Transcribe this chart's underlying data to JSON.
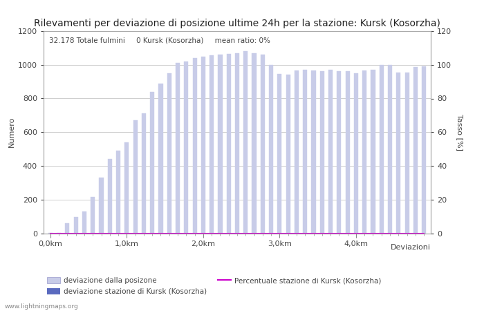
{
  "title": "Rilevamenti per deviazione di posizione ultime 24h per la stazione: Kursk (Kosorzha)",
  "subtitle": "32.178 Totale fulmini     0 Kursk (Kosorzha)     mean ratio: 0%",
  "ylabel_left": "Numero",
  "ylabel_right": "Tasso [%]",
  "xlabel": "Deviazioni",
  "watermark": "www.lightningmaps.org",
  "ylim_left": [
    0,
    1200
  ],
  "ylim_right": [
    0,
    120
  ],
  "xtick_labels": [
    "0,0km",
    "1,0km",
    "2,0km",
    "3,0km",
    "4,0km"
  ],
  "xtick_positions": [
    0,
    9,
    18,
    27,
    36
  ],
  "legend_items": [
    {
      "label": "deviazione dalla posizone",
      "color": "#c8cce8",
      "type": "bar"
    },
    {
      "label": "deviazione stazione di Kursk (Kosorzha)",
      "color": "#5a6abf",
      "type": "bar"
    },
    {
      "label": "Percentuale stazione di Kursk (Kosorzha)",
      "color": "#cc00cc",
      "type": "line"
    }
  ],
  "bar_values": [
    2,
    2,
    60,
    95,
    130,
    215,
    330,
    440,
    490,
    540,
    670,
    710,
    840,
    890,
    950,
    1010,
    1020,
    1040,
    1050,
    1055,
    1060,
    1065,
    1070,
    1080,
    1070,
    1060,
    1000,
    945,
    940,
    965,
    970,
    965,
    960,
    970,
    960,
    960,
    950,
    965,
    970,
    1000,
    1000,
    955,
    955,
    985,
    990
  ],
  "station_values": [
    0,
    0,
    0,
    0,
    0,
    0,
    0,
    0,
    0,
    0,
    0,
    0,
    0,
    0,
    0,
    0,
    0,
    0,
    0,
    0,
    0,
    0,
    0,
    0,
    0,
    0,
    0,
    0,
    0,
    0,
    0,
    0,
    0,
    0,
    0,
    0,
    0,
    0,
    0,
    0,
    0,
    0,
    0,
    0,
    0
  ],
  "ratio_values": [
    0,
    0,
    0,
    0,
    0,
    0,
    0,
    0,
    0,
    0,
    0,
    0,
    0,
    0,
    0,
    0,
    0,
    0,
    0,
    0,
    0,
    0,
    0,
    0,
    0,
    0,
    0,
    0,
    0,
    0,
    0,
    0,
    0,
    0,
    0,
    0,
    0,
    0,
    0,
    0,
    0,
    0,
    0,
    0,
    0
  ],
  "bar_color": "#c8cce8",
  "bar_edge_color": "#9999cc",
  "station_bar_color": "#5a6abf",
  "line_color": "#cc00cc",
  "bg_color": "#ffffff",
  "grid_color": "#bbbbbb",
  "title_fontsize": 10,
  "axis_fontsize": 8,
  "tick_fontsize": 8,
  "subtitle_fontsize": 7.5
}
